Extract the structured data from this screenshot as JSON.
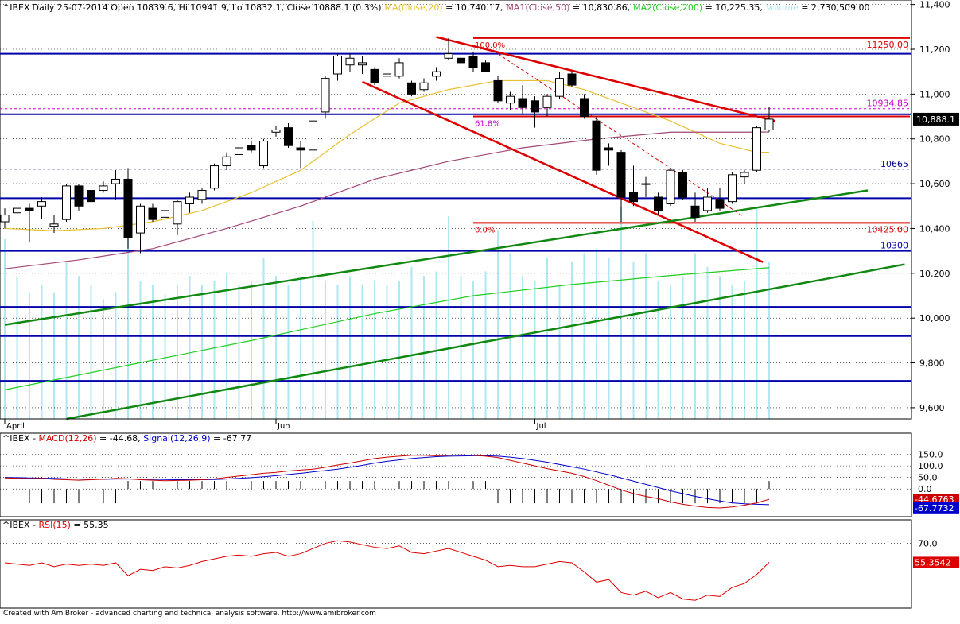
{
  "header": {
    "symbol": "^IBEX",
    "info": "Daily 25-07-2014 Open 10839.6, Hi 10941.9, Lo 10832.1, Close 10888.1 (0.3%)",
    "ma20_label": "MA(Close,20)",
    "ma20_value": " = 10,740.17,",
    "ma50_label": "MA1(Close,50)",
    "ma50_value": " = 10,830.86,",
    "ma200_label": "MA2(Close,200)",
    "ma200_value": " = 10,225.35,",
    "volume_label": "Volume",
    "volume_value": " = 2,730,509.00"
  },
  "macd_header": {
    "symbol": "^IBEX - ",
    "macd_label": "MACD(12,26)",
    "macd_value": " = -44.68, ",
    "signal_label": "Signal(12,26,9)",
    "signal_value": " = -67.77"
  },
  "rsi_header": {
    "symbol": "^IBEX - ",
    "rsi_label": "RSI(15)",
    "rsi_value": " = 55.35"
  },
  "footer": "Created with AmiBroker - advanced charting and technical analysis software. http://www.amibroker.com",
  "colors": {
    "up": "#ffffff",
    "down": "#000000",
    "ma20": "#e8c030",
    "ma50": "#a04878",
    "ma200": "#22cc22",
    "volume": "#aee8f0",
    "hline": "#0000aa",
    "fib": "#dd0000",
    "trend_green": "#118811",
    "trend_red": "#dd0000",
    "macd": "#cc0000",
    "signal": "#0000cc",
    "rsi": "#dd0000"
  },
  "chart_data": [
    {
      "type": "candlestick",
      "panel": "price",
      "x_labels": [
        {
          "i": 0,
          "label": "April"
        },
        {
          "i": 22,
          "label": "Jun"
        },
        {
          "i": 43,
          "label": "Jul"
        }
      ],
      "ylim": [
        9550,
        11420
      ],
      "yticks": [
        "9,600",
        "9,800",
        "10,000",
        "10,200",
        "10,400",
        "10,600",
        "10,800",
        "11,000",
        "11,200",
        "11,400"
      ],
      "last_price_label": "10,888.1",
      "candles": [
        {
          "o": 10430,
          "h": 10490,
          "l": 10400,
          "c": 10460
        },
        {
          "o": 10470,
          "h": 10530,
          "l": 10450,
          "c": 10490
        },
        {
          "o": 10490,
          "h": 10510,
          "l": 10340,
          "c": 10480
        },
        {
          "o": 10500,
          "h": 10540,
          "l": 10440,
          "c": 10520
        },
        {
          "o": 10410,
          "h": 10460,
          "l": 10380,
          "c": 10420
        },
        {
          "o": 10440,
          "h": 10600,
          "l": 10430,
          "c": 10590
        },
        {
          "o": 10590,
          "h": 10600,
          "l": 10480,
          "c": 10500
        },
        {
          "o": 10570,
          "h": 10580,
          "l": 10490,
          "c": 10520
        },
        {
          "o": 10570,
          "h": 10610,
          "l": 10560,
          "c": 10590
        },
        {
          "o": 10600,
          "h": 10660,
          "l": 10530,
          "c": 10620
        },
        {
          "o": 10620,
          "h": 10670,
          "l": 10310,
          "c": 10360
        },
        {
          "o": 10380,
          "h": 10510,
          "l": 10290,
          "c": 10500
        },
        {
          "o": 10490,
          "h": 10510,
          "l": 10430,
          "c": 10440
        },
        {
          "o": 10450,
          "h": 10490,
          "l": 10420,
          "c": 10480
        },
        {
          "o": 10420,
          "h": 10530,
          "l": 10370,
          "c": 10520
        },
        {
          "o": 10510,
          "h": 10560,
          "l": 10470,
          "c": 10540
        },
        {
          "o": 10530,
          "h": 10580,
          "l": 10510,
          "c": 10570
        },
        {
          "o": 10580,
          "h": 10690,
          "l": 10570,
          "c": 10680
        },
        {
          "o": 10680,
          "h": 10740,
          "l": 10660,
          "c": 10720
        },
        {
          "o": 10730,
          "h": 10770,
          "l": 10670,
          "c": 10760
        },
        {
          "o": 10770,
          "h": 10790,
          "l": 10740,
          "c": 10750
        },
        {
          "o": 10680,
          "h": 10800,
          "l": 10670,
          "c": 10790
        },
        {
          "o": 10830,
          "h": 10860,
          "l": 10810,
          "c": 10840
        },
        {
          "o": 10850,
          "h": 10870,
          "l": 10760,
          "c": 10770
        },
        {
          "o": 10760,
          "h": 10790,
          "l": 10670,
          "c": 10750
        },
        {
          "o": 10750,
          "h": 10900,
          "l": 10740,
          "c": 10880
        },
        {
          "o": 10920,
          "h": 11080,
          "l": 10890,
          "c": 11070
        },
        {
          "o": 11090,
          "h": 11180,
          "l": 11060,
          "c": 11170
        },
        {
          "o": 11130,
          "h": 11180,
          "l": 11100,
          "c": 11160
        },
        {
          "o": 11130,
          "h": 11170,
          "l": 11090,
          "c": 11140
        },
        {
          "o": 11110,
          "h": 11120,
          "l": 11040,
          "c": 11050
        },
        {
          "o": 11080,
          "h": 11100,
          "l": 11060,
          "c": 11090
        },
        {
          "o": 11080,
          "h": 11160,
          "l": 11070,
          "c": 11140
        },
        {
          "o": 11050,
          "h": 11060,
          "l": 10990,
          "c": 11000
        },
        {
          "o": 11020,
          "h": 11070,
          "l": 11010,
          "c": 11050
        },
        {
          "o": 11080,
          "h": 11120,
          "l": 11060,
          "c": 11100
        },
        {
          "o": 11160,
          "h": 11250,
          "l": 11150,
          "c": 11180
        },
        {
          "o": 11160,
          "h": 11220,
          "l": 11140,
          "c": 11140
        },
        {
          "o": 11170,
          "h": 11190,
          "l": 11100,
          "c": 11120
        },
        {
          "o": 11140,
          "h": 11150,
          "l": 11100,
          "c": 11100
        },
        {
          "o": 11060,
          "h": 11080,
          "l": 10960,
          "c": 10970
        },
        {
          "o": 10960,
          "h": 11010,
          "l": 10930,
          "c": 10990
        },
        {
          "o": 10980,
          "h": 11040,
          "l": 10910,
          "c": 10940
        },
        {
          "o": 10970,
          "h": 10990,
          "l": 10850,
          "c": 10920
        },
        {
          "o": 10940,
          "h": 11000,
          "l": 10900,
          "c": 10990
        },
        {
          "o": 10990,
          "h": 11100,
          "l": 10980,
          "c": 11070
        },
        {
          "o": 11090,
          "h": 11100,
          "l": 11030,
          "c": 11040
        },
        {
          "o": 10980,
          "h": 11000,
          "l": 10890,
          "c": 10900
        },
        {
          "o": 10880,
          "h": 10900,
          "l": 10640,
          "c": 10660
        },
        {
          "o": 10760,
          "h": 10780,
          "l": 10680,
          "c": 10750
        },
        {
          "o": 10740,
          "h": 10750,
          "l": 10430,
          "c": 10540
        },
        {
          "o": 10560,
          "h": 10680,
          "l": 10500,
          "c": 10520
        },
        {
          "o": 10600,
          "h": 10630,
          "l": 10540,
          "c": 10600
        },
        {
          "o": 10540,
          "h": 10560,
          "l": 10460,
          "c": 10480
        },
        {
          "o": 10510,
          "h": 10670,
          "l": 10500,
          "c": 10660
        },
        {
          "o": 10650,
          "h": 10660,
          "l": 10530,
          "c": 10540
        },
        {
          "o": 10500,
          "h": 10560,
          "l": 10430,
          "c": 10450
        },
        {
          "o": 10480,
          "h": 10580,
          "l": 10470,
          "c": 10540
        },
        {
          "o": 10530,
          "h": 10580,
          "l": 10480,
          "c": 10490
        },
        {
          "o": 10520,
          "h": 10650,
          "l": 10510,
          "c": 10640
        },
        {
          "o": 10630,
          "h": 10660,
          "l": 10600,
          "c": 10650
        },
        {
          "o": 10660,
          "h": 10860,
          "l": 10650,
          "c": 10850
        },
        {
          "o": 10840,
          "h": 10942,
          "l": 10832,
          "c": 10888
        }
      ],
      "volume": [
        0.78,
        0.62,
        0.55,
        0.58,
        0.55,
        0.68,
        0.62,
        0.58,
        0.52,
        0.55,
        0.88,
        0.6,
        0.58,
        0.54,
        0.58,
        0.62,
        0.58,
        0.6,
        0.63,
        0.58,
        0.6,
        0.7,
        0.62,
        0.58,
        0.62,
        0.86,
        0.6,
        0.58,
        0.62,
        0.58,
        0.6,
        0.58,
        0.6,
        0.66,
        0.62,
        0.64,
        0.88,
        0.62,
        0.6,
        0.64,
        0.82,
        0.72,
        0.62,
        0.6,
        0.7,
        0.58,
        0.68,
        0.72,
        0.74,
        0.7,
        0.92,
        0.68,
        0.72,
        0.6,
        0.58,
        0.62,
        0.72,
        0.66,
        0.62,
        0.58,
        0.6,
        0.92,
        0.68
      ],
      "volume_ticks": [
        0,
        10,
        22,
        27,
        36,
        43,
        51,
        56,
        62
      ],
      "moving_averages": {
        "ma20": [
          [
            0,
            10400
          ],
          [
            4,
            10390
          ],
          [
            8,
            10400
          ],
          [
            12,
            10430
          ],
          [
            16,
            10480
          ],
          [
            20,
            10560
          ],
          [
            24,
            10660
          ],
          [
            28,
            10820
          ],
          [
            32,
            10960
          ],
          [
            36,
            11020
          ],
          [
            40,
            11060
          ],
          [
            44,
            11060
          ],
          [
            47,
            11020
          ],
          [
            50,
            10960
          ],
          [
            54,
            10880
          ],
          [
            58,
            10780
          ],
          [
            61,
            10740
          ],
          [
            62,
            10740
          ]
        ],
        "ma50": [
          [
            0,
            10220
          ],
          [
            6,
            10260
          ],
          [
            12,
            10310
          ],
          [
            18,
            10400
          ],
          [
            24,
            10500
          ],
          [
            30,
            10620
          ],
          [
            36,
            10700
          ],
          [
            42,
            10760
          ],
          [
            48,
            10800
          ],
          [
            54,
            10830
          ],
          [
            60,
            10830
          ],
          [
            62,
            10831
          ]
        ],
        "ma200": [
          [
            0,
            9680
          ],
          [
            10,
            9790
          ],
          [
            20,
            9900
          ],
          [
            30,
            10020
          ],
          [
            38,
            10100
          ],
          [
            46,
            10150
          ],
          [
            54,
            10190
          ],
          [
            62,
            10225
          ]
        ]
      },
      "horizontal_lines": [
        {
          "value": 11180,
          "color": "#0000aa",
          "label": ""
        },
        {
          "value": 10910,
          "color": "#0000aa",
          "label": ""
        },
        {
          "value": 10535,
          "color": "#0000aa",
          "label": ""
        },
        {
          "value": 10300,
          "color": "#0000aa",
          "label": "10300"
        },
        {
          "value": 10050,
          "color": "#0000aa",
          "label": ""
        },
        {
          "value": 9920,
          "color": "#0000aa",
          "label": ""
        },
        {
          "value": 9720,
          "color": "#0000aa",
          "label": ""
        },
        {
          "value": 10665,
          "color": "#000088",
          "dashed": true,
          "label": "10665"
        },
        {
          "value": 10934.85,
          "color": "#cc00cc",
          "dashed": true,
          "label": "10934.85"
        }
      ],
      "fibonacci": {
        "levels": [
          {
            "value": 11250,
            "left_label": "100.0%",
            "right_label": "11250.00"
          },
          {
            "value": 10425,
            "left_label": "0.0%",
            "right_label": "10425.00"
          },
          {
            "value": 10900,
            "left_label": "61.8%",
            "right_label": ""
          }
        ],
        "start_i": 38
      },
      "trendlines": [
        {
          "color": "#dd0000",
          "x1": 35,
          "y1": 11255,
          "x2": 62.5,
          "y2": 10880
        },
        {
          "color": "#dd0000",
          "x1": 29,
          "y1": 11055,
          "x2": 61.5,
          "y2": 10250
        },
        {
          "color": "#118811",
          "x1": 0,
          "y1": 9970,
          "x2": 70,
          "y2": 10570
        },
        {
          "color": "#118811",
          "x1": 5,
          "y1": 9550,
          "x2": 73,
          "y2": 10240
        },
        {
          "color": "#cc0000",
          "x1": 40,
          "y1": 11180,
          "x2": 60,
          "y2": 10450,
          "dashed": true
        }
      ]
    },
    {
      "type": "line",
      "panel": "macd",
      "ylim": [
        -120,
        190
      ],
      "yticks": [
        "0.0",
        "50.0",
        "100.0",
        "150.0"
      ],
      "macd": [
        48,
        46,
        45,
        46,
        42,
        40,
        38,
        40,
        42,
        46,
        44,
        40,
        38,
        36,
        37,
        38,
        40,
        44,
        50,
        56,
        62,
        68,
        72,
        78,
        82,
        86,
        94,
        104,
        112,
        122,
        132,
        138,
        142,
        146,
        146,
        144,
        146,
        148,
        146,
        142,
        136,
        124,
        112,
        100,
        88,
        78,
        68,
        54,
        36,
        16,
        -4,
        -20,
        -32,
        -42,
        -56,
        -66,
        -74,
        -80,
        -82,
        -78,
        -70,
        -60,
        -44.68
      ],
      "signal": [
        50,
        49,
        48,
        47,
        46,
        44,
        43,
        42,
        42,
        43,
        43,
        43,
        42,
        41,
        40,
        40,
        40,
        41,
        43,
        46,
        49,
        53,
        58,
        63,
        68,
        74,
        80,
        86,
        94,
        102,
        112,
        120,
        126,
        132,
        136,
        140,
        142,
        143,
        144,
        144,
        142,
        138,
        132,
        124,
        116,
        106,
        96,
        86,
        74,
        62,
        48,
        34,
        20,
        6,
        -8,
        -20,
        -32,
        -42,
        -52,
        -60,
        -64,
        -66,
        -67.77
      ],
      "hist_sign": [
        0,
        -1,
        -1,
        -1,
        -1,
        -1,
        -1,
        -1,
        -1,
        -1,
        1,
        1,
        1,
        1,
        1,
        1,
        1,
        1,
        1,
        1,
        1,
        1,
        1,
        1,
        1,
        1,
        1,
        1,
        1,
        1,
        1,
        1,
        1,
        1,
        1,
        1,
        1,
        1,
        1,
        1,
        -1,
        -1,
        -1,
        -1,
        -1,
        -1,
        -1,
        -1,
        -1,
        -1,
        -1,
        -1,
        -1,
        -1,
        -1,
        -1,
        -1,
        -1,
        -1,
        -1,
        -1,
        -1,
        1
      ],
      "macd_label": "-44.6763",
      "signal_label": "-67.7732"
    },
    {
      "type": "line",
      "panel": "rsi",
      "ylim": [
        20,
        82
      ],
      "yticks": [
        "70.0"
      ],
      "rsi": [
        55,
        54,
        53,
        55,
        52,
        54,
        53,
        54,
        53,
        55,
        45,
        50,
        49,
        52,
        51,
        53,
        56,
        58,
        60,
        61,
        60,
        62,
        63,
        60,
        62,
        66,
        70,
        72,
        71,
        69,
        67,
        66,
        68,
        63,
        62,
        64,
        66,
        63,
        60,
        57,
        52,
        53,
        52,
        52,
        54,
        56,
        55,
        48,
        40,
        42,
        32,
        30,
        33,
        28,
        32,
        27,
        26,
        30,
        29,
        36,
        39,
        46,
        55.35
      ],
      "rsi_label": "55.3542"
    }
  ]
}
